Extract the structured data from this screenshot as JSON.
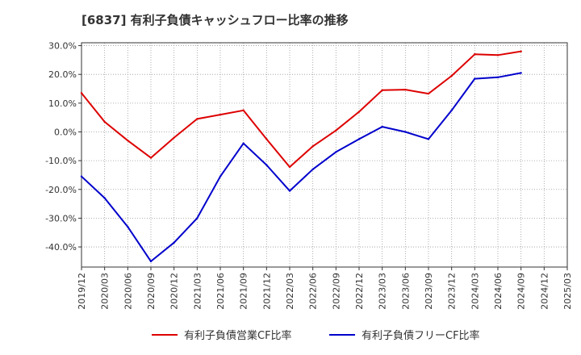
{
  "title": "[6837]  有利子負債キャッシュフロー比率の推移",
  "chart_data": {
    "type": "line",
    "title": "[6837]  有利子負債キャッシュフロー比率の推移",
    "xlabel": "",
    "ylabel": "",
    "x": [
      "2019/12",
      "2020/03",
      "2020/06",
      "2020/09",
      "2020/12",
      "2021/03",
      "2021/06",
      "2021/09",
      "2021/12",
      "2022/03",
      "2022/06",
      "2022/09",
      "2022/12",
      "2023/03",
      "2023/06",
      "2023/09",
      "2023/12",
      "2024/03",
      "2024/06",
      "2024/09",
      "2024/12",
      "2025/03"
    ],
    "ylim": [
      -47,
      31
    ],
    "yticks": [
      30,
      20,
      10,
      0,
      -10,
      -20,
      -30,
      -40
    ],
    "ytick_labels": [
      "30.0%",
      "20.0%",
      "10.0%",
      "0.0%",
      "-10.0%",
      "-20.0%",
      "-30.0%",
      "-40.0%"
    ],
    "grid": true,
    "legend_position": "bottom",
    "series": [
      {
        "name": "有利子負債営業CF比率",
        "color": "#dd0000",
        "values": [
          13.5,
          3.5,
          -3.0,
          -9.0,
          -2.0,
          4.5,
          6.0,
          7.5,
          -2.5,
          -12.2,
          -5.0,
          0.5,
          7.0,
          14.5,
          14.7,
          13.3,
          19.5,
          27.0,
          26.7,
          28.0,
          null,
          null
        ]
      },
      {
        "name": "有利子負債フリーCF比率",
        "color": "#0000cc",
        "values": [
          -15.5,
          -23.0,
          -33.0,
          -45.0,
          -38.5,
          -30.0,
          -15.5,
          -4.0,
          -11.5,
          -20.5,
          -13.0,
          -7.0,
          -2.5,
          1.8,
          0.0,
          -2.5,
          7.5,
          18.5,
          19.0,
          20.5,
          null,
          null
        ]
      }
    ]
  }
}
